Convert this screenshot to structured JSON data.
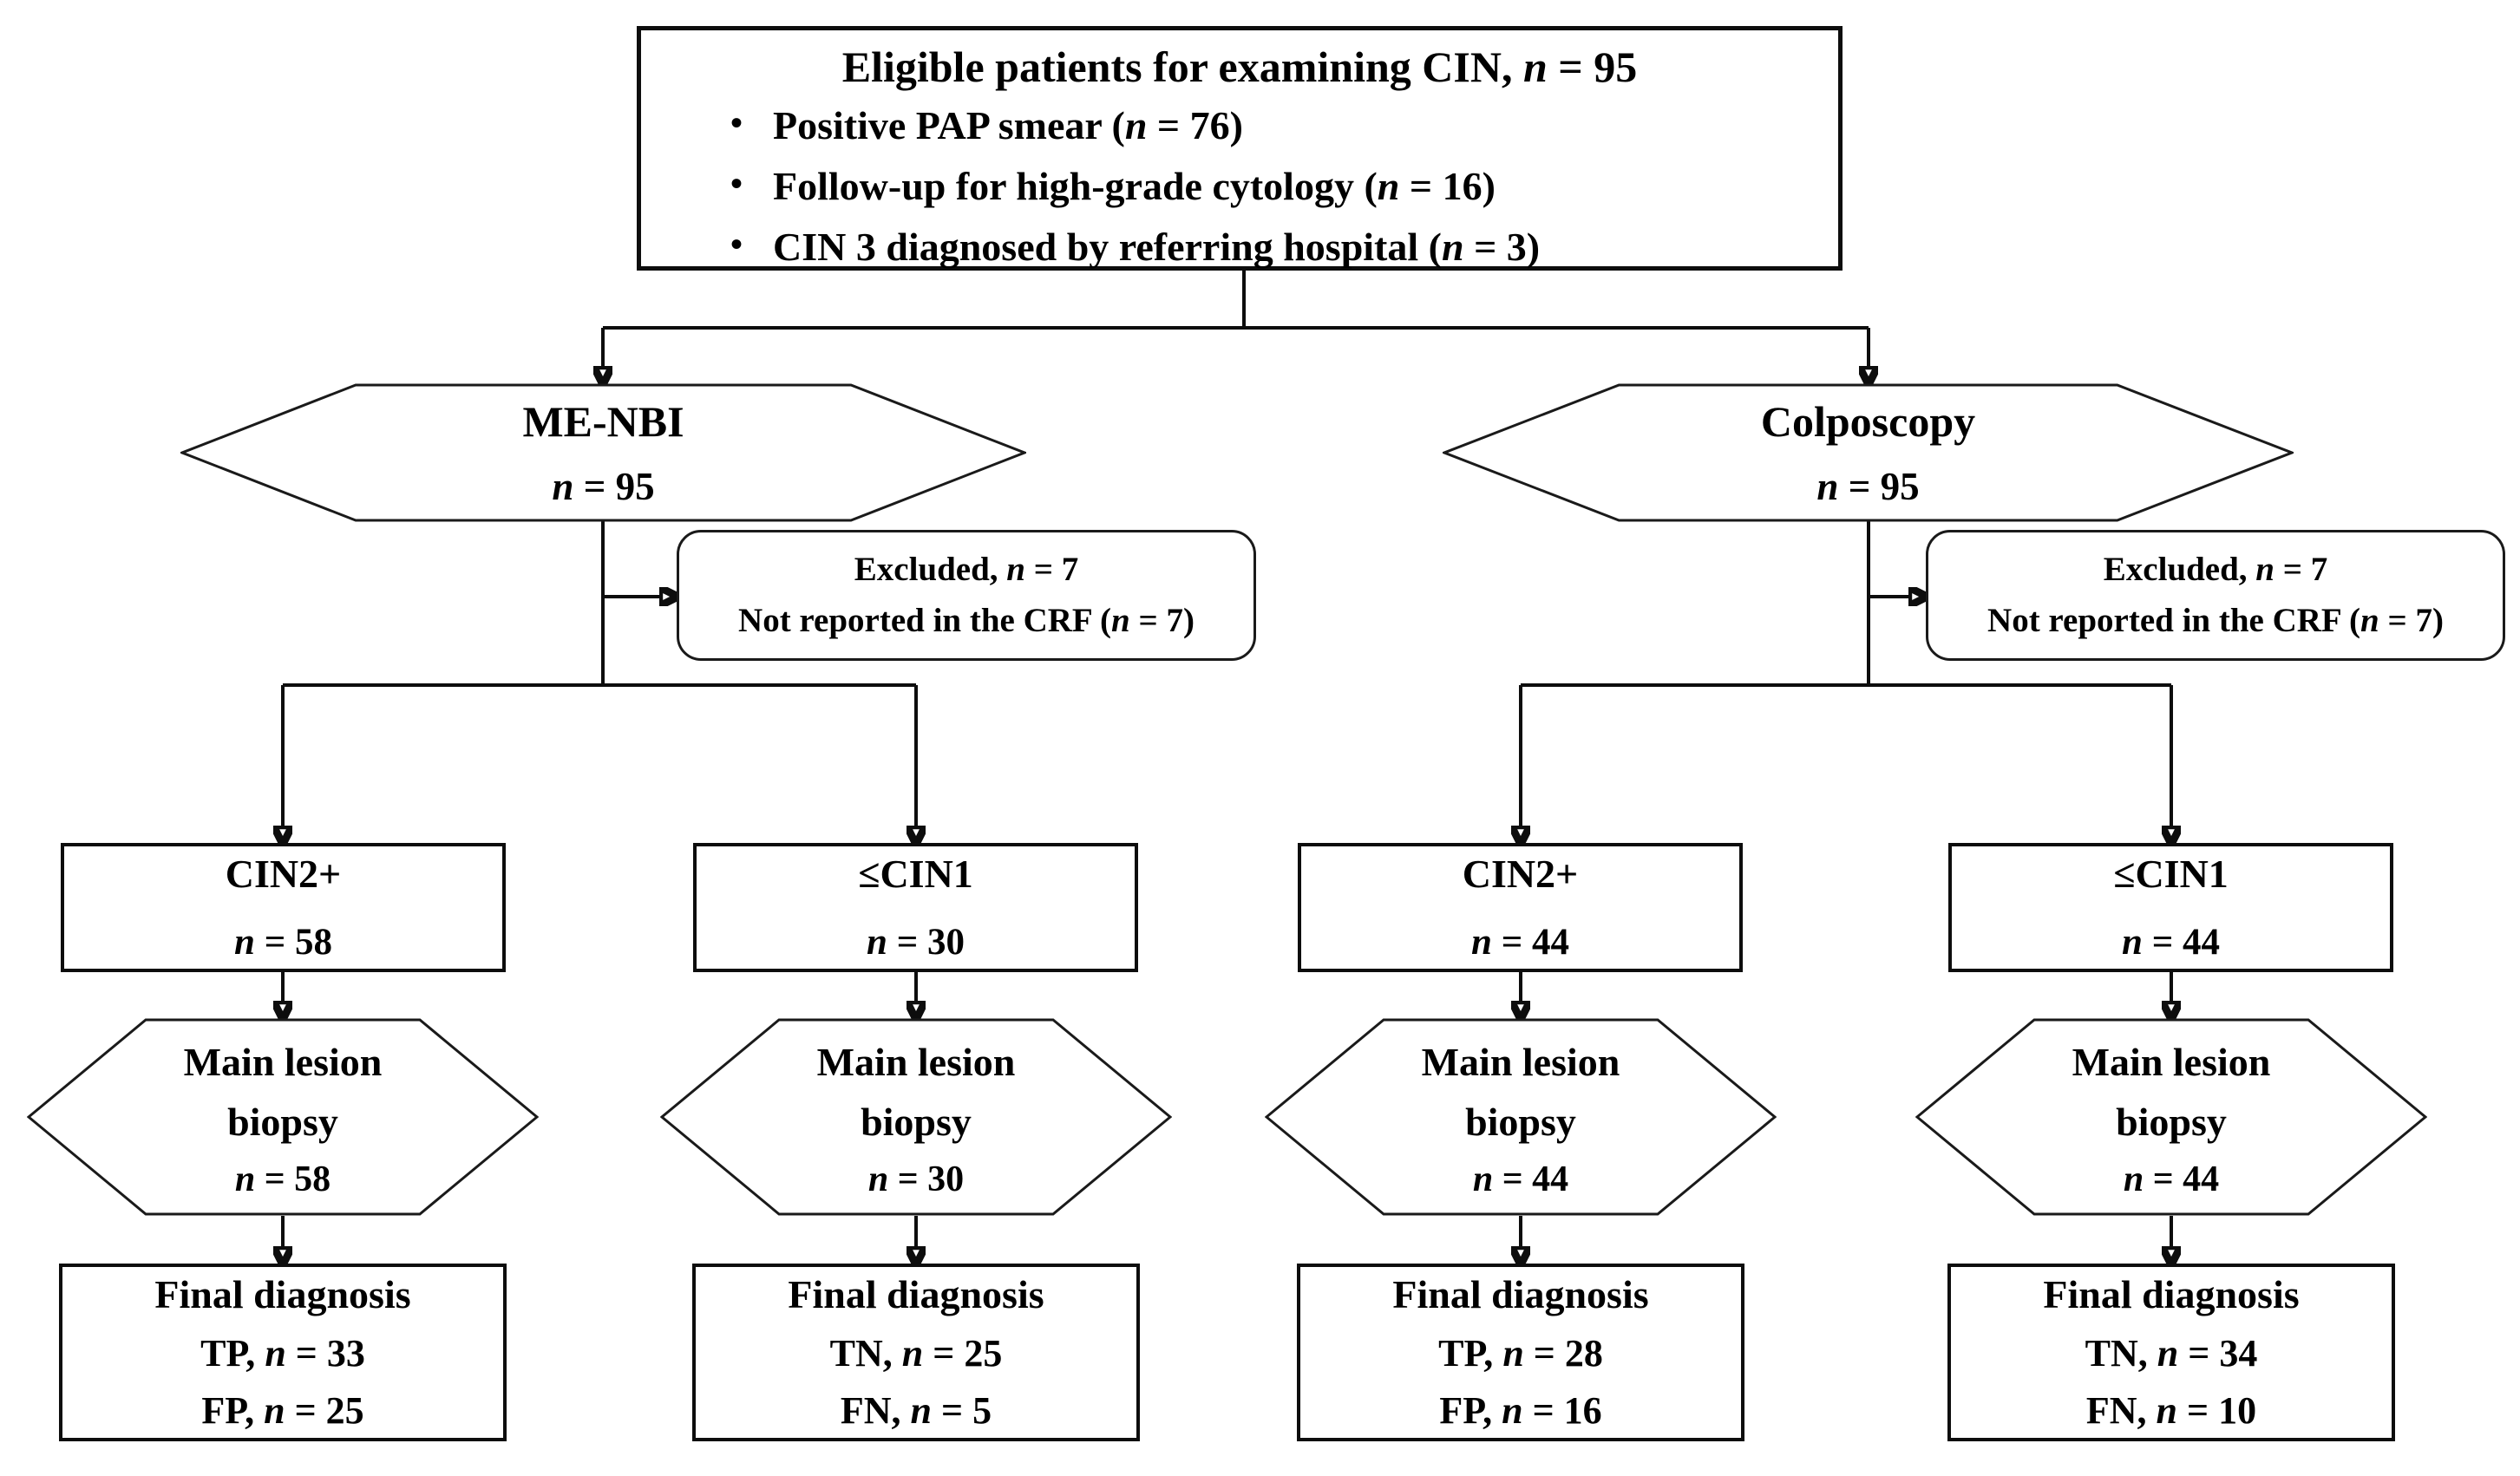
{
  "flow": {
    "bullet_char": "•",
    "root": {
      "title": "Eligible patients for examining CIN, n = 95",
      "bullets": [
        "Positive PAP smear (n = 76)",
        "Follow-up for high-grade cytology (n = 16)",
        "CIN 3 diagnosed by referring hospital (n = 3)"
      ]
    },
    "branches": [
      {
        "name": "ME-NBI",
        "n": "n = 95"
      },
      {
        "name": "Colposcopy",
        "n": "n = 95"
      }
    ],
    "excluded": {
      "line1": "Excluded, n = 7",
      "line2": "Not reported in the CRF (n = 7)"
    },
    "groups": [
      {
        "label": "CIN2+",
        "n": "n = 58"
      },
      {
        "label": "≤CIN1",
        "n": "n = 30"
      },
      {
        "label": "CIN2+",
        "n": "n = 44"
      },
      {
        "label": "≤CIN1",
        "n": "n = 44"
      }
    ],
    "biopsy": {
      "line1": "Main lesion",
      "line2": "biopsy",
      "counts": [
        "n = 58",
        "n = 30",
        "n = 44",
        "n = 44"
      ]
    },
    "finals": [
      {
        "title": "Final diagnosis",
        "line1": "TP, n = 33",
        "line2": "FP, n = 25"
      },
      {
        "title": "Final diagnosis",
        "line1": "TN, n = 25",
        "line2": "FN, n = 5"
      },
      {
        "title": "Final diagnosis",
        "line1": "TP, n = 28",
        "line2": "FP, n = 16"
      },
      {
        "title": "Final diagnosis",
        "line1": "TN, n = 34",
        "line2": "FN, n = 10"
      }
    ],
    "colors": {
      "ink": "#0d0d0d",
      "gray_segment": "#9d9d9d",
      "background": "#ffffff"
    }
  }
}
